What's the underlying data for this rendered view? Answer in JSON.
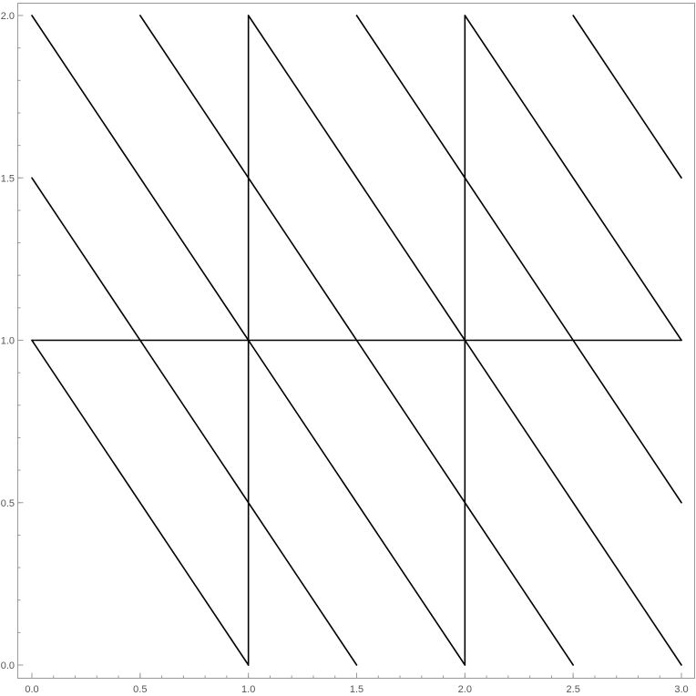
{
  "chart_data": {
    "type": "line",
    "title": "",
    "xlabel": "",
    "ylabel": "",
    "xlim": [
      0,
      3
    ],
    "ylim": [
      0,
      2
    ],
    "x_ticks": [
      "0.0",
      "0.5",
      "1.0",
      "1.5",
      "2.0",
      "2.5",
      "3.0"
    ],
    "y_ticks": [
      "0.0",
      "0.5",
      "1.0",
      "1.5",
      "2.0"
    ],
    "line_color": "#000000",
    "grid": false,
    "segments": [
      {
        "x": [
          0,
          1
        ],
        "y": [
          1,
          0
        ]
      },
      {
        "x": [
          0,
          1.5
        ],
        "y": [
          1.5,
          0
        ]
      },
      {
        "x": [
          0,
          2
        ],
        "y": [
          2,
          0
        ]
      },
      {
        "x": [
          0.5,
          2.5
        ],
        "y": [
          2,
          0
        ]
      },
      {
        "x": [
          1,
          3
        ],
        "y": [
          2,
          0
        ]
      },
      {
        "x": [
          1.5,
          3
        ],
        "y": [
          2,
          0.5
        ]
      },
      {
        "x": [
          2,
          3
        ],
        "y": [
          2,
          1
        ]
      },
      {
        "x": [
          2.5,
          3
        ],
        "y": [
          2,
          1.5
        ]
      },
      {
        "x": [
          0,
          3
        ],
        "y": [
          1,
          1
        ]
      },
      {
        "x": [
          1,
          1
        ],
        "y": [
          0,
          2
        ]
      },
      {
        "x": [
          2,
          2
        ],
        "y": [
          0,
          2
        ]
      }
    ]
  }
}
